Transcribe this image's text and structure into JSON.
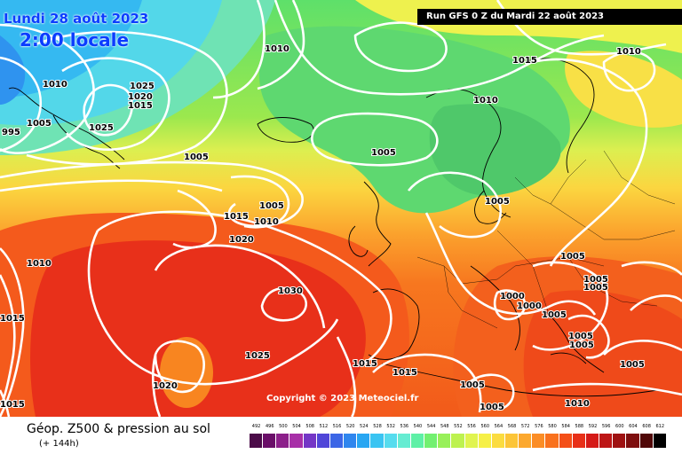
{
  "header": {
    "date": "Lundi 28 août 2023",
    "local_time": "2:00 locale",
    "run": "Run GFS 0 Z du Mardi 22 août 2023"
  },
  "map": {
    "copyright": "Copyright © 2023 Meteociel.fr",
    "pressure_labels": [
      "995",
      "1005",
      "1010",
      "1025",
      "1020",
      "1015",
      "1025",
      "1005",
      "1010",
      "1015",
      "1005",
      "1010",
      "1010",
      "1005",
      "1005",
      "1015",
      "1010",
      "1020",
      "1010",
      "1005",
      "1030",
      "1005",
      "1005",
      "1000",
      "1000",
      "1005",
      "1005",
      "1005",
      "1025",
      "1015",
      "1020",
      "1015",
      "1015",
      "1005",
      "1005",
      "1010",
      "1005",
      "1015"
    ]
  },
  "footer": {
    "title": "Géop. Z500 & pression au sol",
    "subtitle": "(+ 144h)",
    "scale_ticks": [
      "492",
      "496",
      "500",
      "504",
      "508",
      "512",
      "516",
      "520",
      "524",
      "528",
      "532",
      "536",
      "540",
      "544",
      "548",
      "552",
      "556",
      "560",
      "564",
      "568",
      "572",
      "576",
      "580",
      "584",
      "588",
      "592",
      "596",
      "600",
      "604",
      "608",
      "612"
    ],
    "scale_colors": [
      "#4b0b48",
      "#6a0e68",
      "#8c1f8a",
      "#a830a8",
      "#7436c6",
      "#5046d8",
      "#3c66e6",
      "#2f86ee",
      "#28a6f2",
      "#3ac4f2",
      "#56dcee",
      "#66ecd2",
      "#5ef0a6",
      "#72f070",
      "#98f05a",
      "#bdf24f",
      "#e0f44f",
      "#f6f047",
      "#fbdc40",
      "#fcc538",
      "#fca82e",
      "#fb8d25",
      "#f9711d",
      "#f44f18",
      "#e83018",
      "#d51a17",
      "#bd1616",
      "#9f1212",
      "#7e0e0e",
      "#500808",
      "#000000"
    ]
  }
}
